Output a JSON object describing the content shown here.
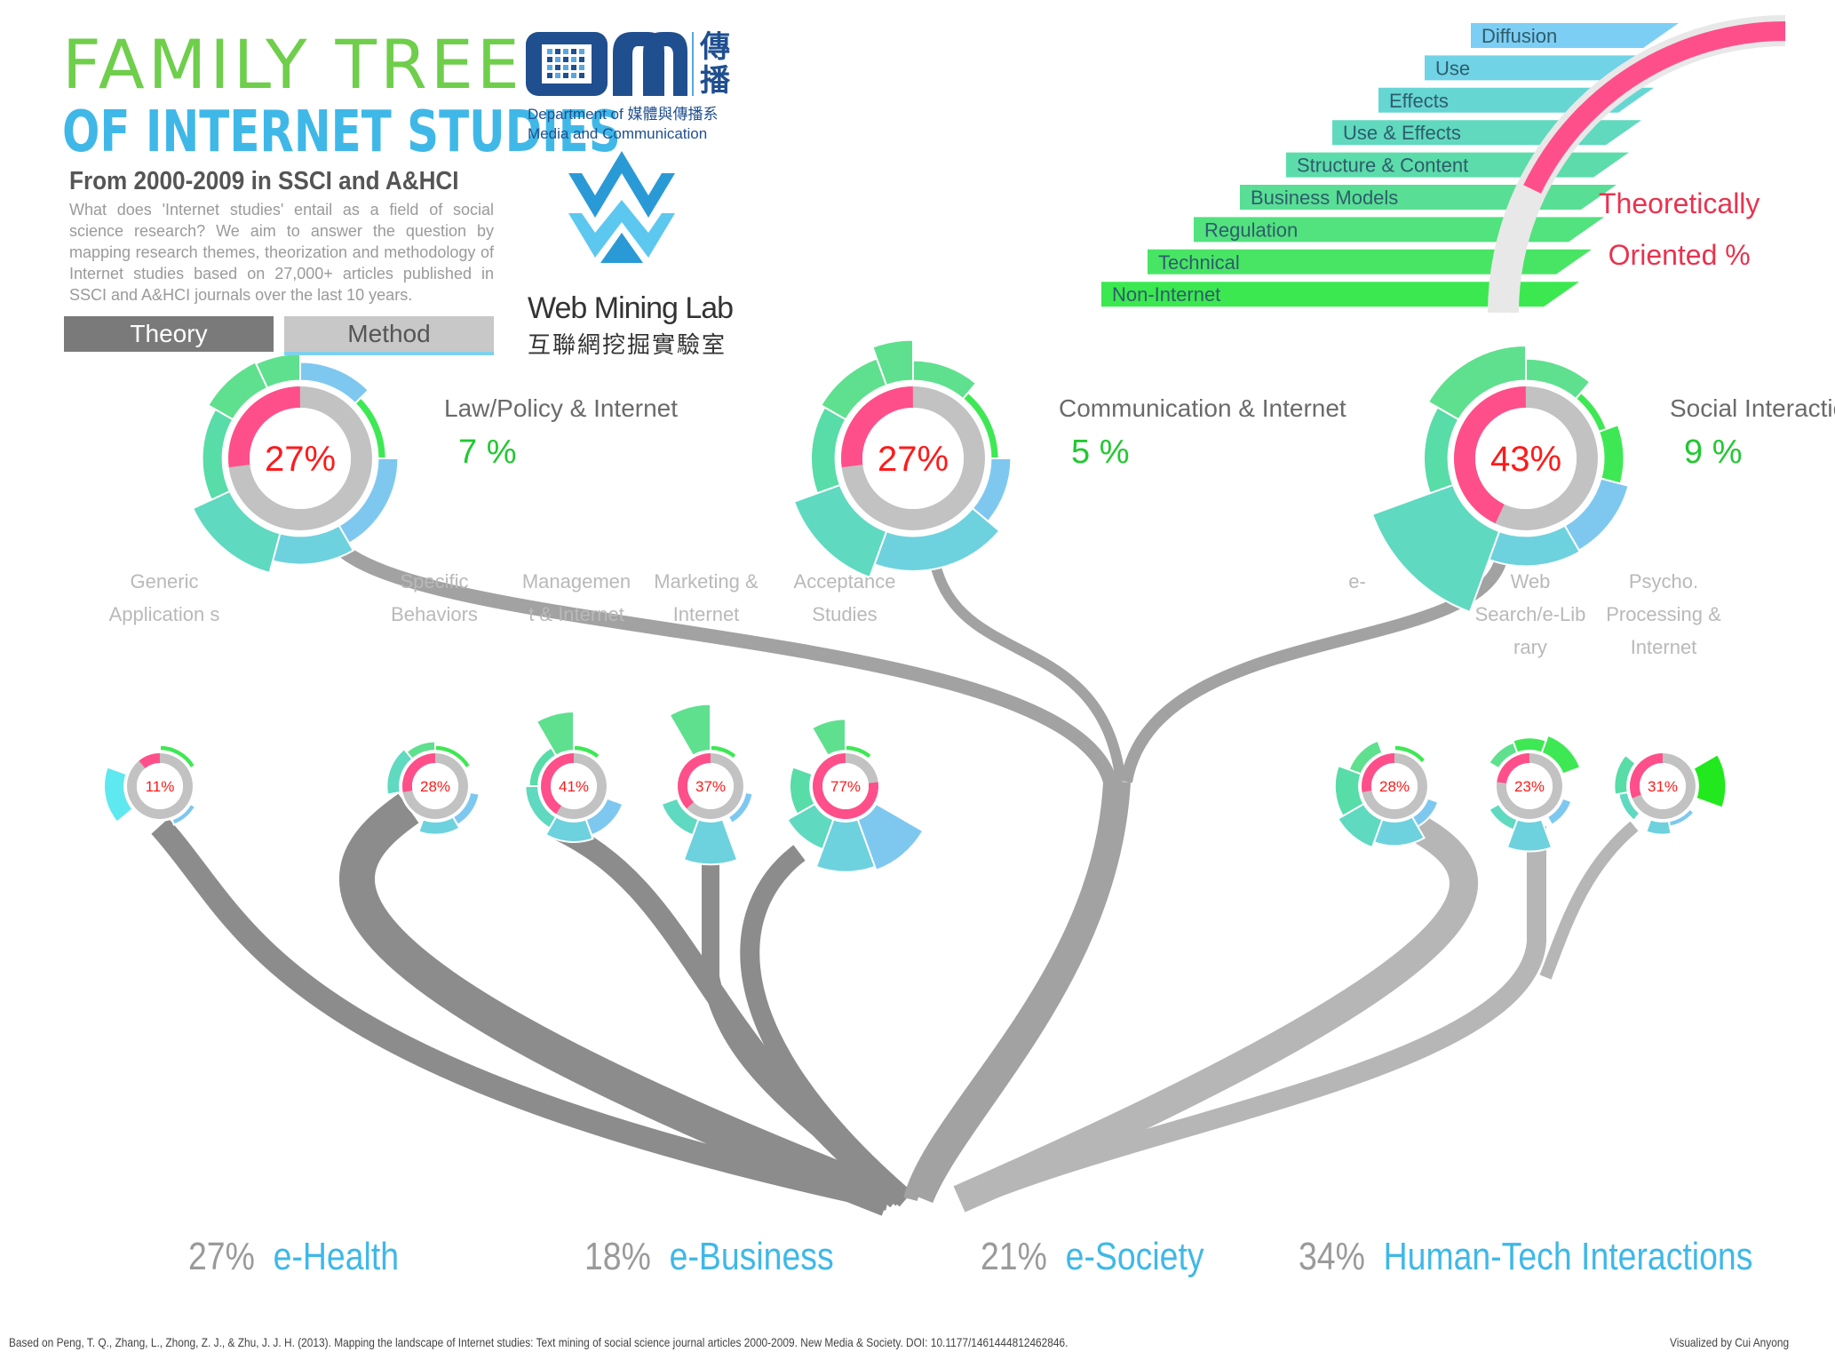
{
  "header": {
    "title_line1": "FAMILY TREE",
    "title_line2": "OF INTERNET STUDIES",
    "subtitle": "From 2000-2009 in SSCI and A&HCI",
    "intro": "What does 'Internet studies' entail as a field of social science research? We aim to answer the question by mapping research themes, theorization and methodology of Internet studies based on 27,000+ articles published in SSCI and A&HCI journals over the last 10 years."
  },
  "tabs": {
    "theory": "Theory",
    "method": "Method"
  },
  "logos": {
    "cm_cn": "傳播",
    "dept_line1": "Department of 媒體與傳播系",
    "dept_line2": "Media and Communication",
    "wml_title": "Web Mining Lab",
    "wml_cn": "互聯網挖掘實驗室"
  },
  "legend": {
    "items": [
      "Diffusion",
      "Use",
      "Effects",
      "Use & Effects",
      "Structure & Content",
      "Business Models",
      "Regulation",
      "Technical",
      "Non-Internet"
    ],
    "theory_label_line1": "Theoretically",
    "theory_label_line2": "Oriented %"
  },
  "colors": {
    "legend_ramp": [
      "#7dcef4",
      "#70d3e6",
      "#66d6d3",
      "#60d9bf",
      "#5cdcaa",
      "#58df95",
      "#52e27e",
      "#48e565",
      "#3be84f"
    ],
    "theory_arc": "#ff4f8b",
    "gray_ring": "#c2c2c2",
    "branch_dark": "#8c8c8c",
    "branch_mid": "#a2a2a2",
    "branch_light": "#b6b6b6",
    "accent_blue": "#3fb8e8",
    "accent_red": "#ff1a1a",
    "accent_green": "#22c832"
  },
  "groups": [
    {
      "label": "Law/Policy & Internet",
      "pct": "7 %",
      "theory_pct": "27%",
      "theory_value": 0.27
    },
    {
      "label": "Communication & Internet",
      "pct": "5 %",
      "theory_pct": "27%",
      "theory_value": 0.27
    },
    {
      "label": "Social Interactio",
      "pct": "9 %",
      "theory_pct": "43%",
      "theory_value": 0.43
    }
  ],
  "leaf_labels": [
    "Generic Application s",
    "Specific Behaviors",
    "Managemen t & Internet",
    "Marketing & Internet",
    "Acceptance Studies",
    "e-",
    "Web Search/e-Lib rary",
    "Psycho. Processing & Internet"
  ],
  "leaves": [
    {
      "theory_pct": "11%",
      "theory_value": 0.11
    },
    {
      "theory_pct": "28%",
      "theory_value": 0.28
    },
    {
      "theory_pct": "41%",
      "theory_value": 0.41
    },
    {
      "theory_pct": "37%",
      "theory_value": 0.37
    },
    {
      "theory_pct": "77%",
      "theory_value": 0.77
    },
    {
      "theory_pct": "28%",
      "theory_value": 0.28
    },
    {
      "theory_pct": "23%",
      "theory_value": 0.23
    },
    {
      "theory_pct": "31%",
      "theory_value": 0.31
    }
  ],
  "categories": [
    {
      "pct": "27%",
      "name": "e-Health"
    },
    {
      "pct": "18%",
      "name": "e-Business"
    },
    {
      "pct": "21%",
      "name": "e-Society"
    },
    {
      "pct": "34%",
      "name": "Human-Tech Interactions"
    }
  ],
  "footer": {
    "citation": "Based on Peng, T. Q., Zhang, L., Zhong, Z. J., & Zhu, J. J. H. (2013). Mapping the landscape of Internet studies: Text mining of social science journal articles 2000-2009. New Media & Society. DOI: 10.1177/1461444812462846.",
    "credit": "Visualized by Cui Anyong"
  }
}
